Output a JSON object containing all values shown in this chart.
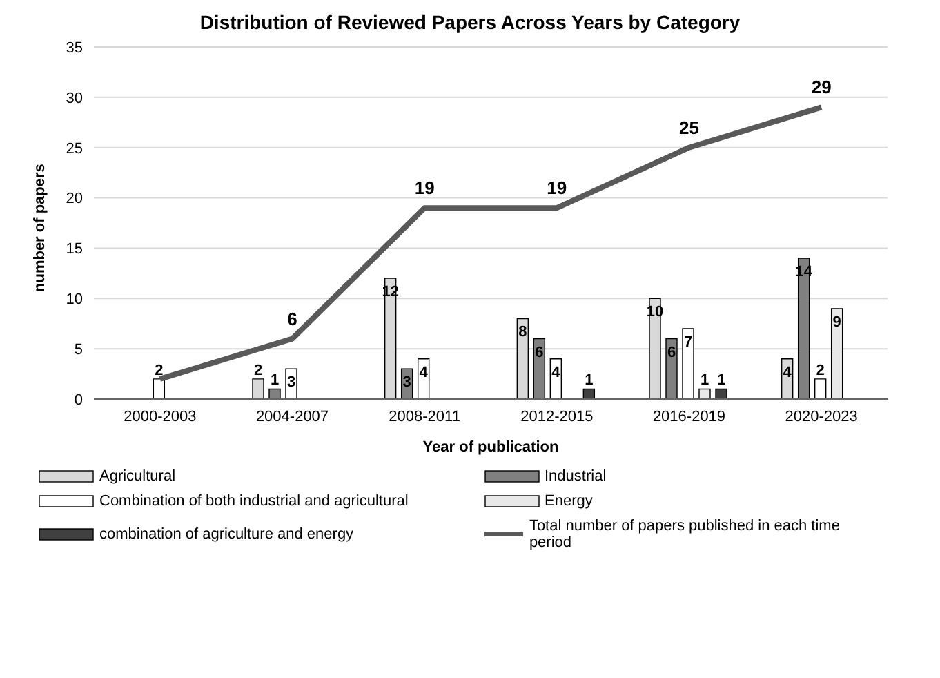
{
  "chart_data": {
    "type": "bar",
    "title": "Distribution of Reviewed Papers Across Years by Category",
    "xlabel": "Year of publication",
    "ylabel": "number of papers",
    "categories": [
      "2000-2003",
      "2004-2007",
      "2008-2011",
      "2012-2015",
      "2016-2019",
      "2020-2023"
    ],
    "series": [
      {
        "name": "Agricultural",
        "color": "#d9d9d9",
        "values": [
          0,
          2,
          12,
          8,
          10,
          4
        ],
        "value_labels": [
          null,
          "2",
          "12",
          "8",
          "10",
          "4"
        ]
      },
      {
        "name": "Industrial",
        "color": "#808080",
        "values": [
          0,
          1,
          3,
          6,
          6,
          14
        ],
        "value_labels": [
          null,
          "1",
          "3",
          "6",
          "6",
          "14"
        ]
      },
      {
        "name": "Combination of both industrial and agricultural",
        "color": "#ffffff",
        "values": [
          2,
          3,
          4,
          4,
          7,
          2
        ],
        "value_labels": [
          "2",
          "3",
          "4",
          "4",
          "7",
          "2"
        ]
      },
      {
        "name": "Energy",
        "color": "#e8e8e8",
        "values": [
          0,
          0,
          0,
          0,
          1,
          9
        ],
        "value_labels": [
          null,
          null,
          null,
          null,
          "1",
          "9"
        ]
      },
      {
        "name": "combination of agriculture and energy",
        "color": "#404040",
        "values": [
          0,
          0,
          0,
          1,
          1,
          0
        ],
        "value_labels": [
          null,
          null,
          null,
          "1",
          "1",
          null
        ]
      },
      {
        "name": "Total number of papers published in each time period",
        "type": "line",
        "color": "#595959",
        "values": [
          2,
          6,
          19,
          19,
          25,
          29
        ],
        "value_labels": [
          null,
          "6",
          "19",
          "19",
          "25",
          "29"
        ]
      }
    ],
    "ylim": [
      0,
      35
    ],
    "yticks": [
      0,
      5,
      10,
      15,
      20,
      25,
      30,
      35
    ],
    "grid": "y",
    "legend": "bottom",
    "marker": "none"
  }
}
